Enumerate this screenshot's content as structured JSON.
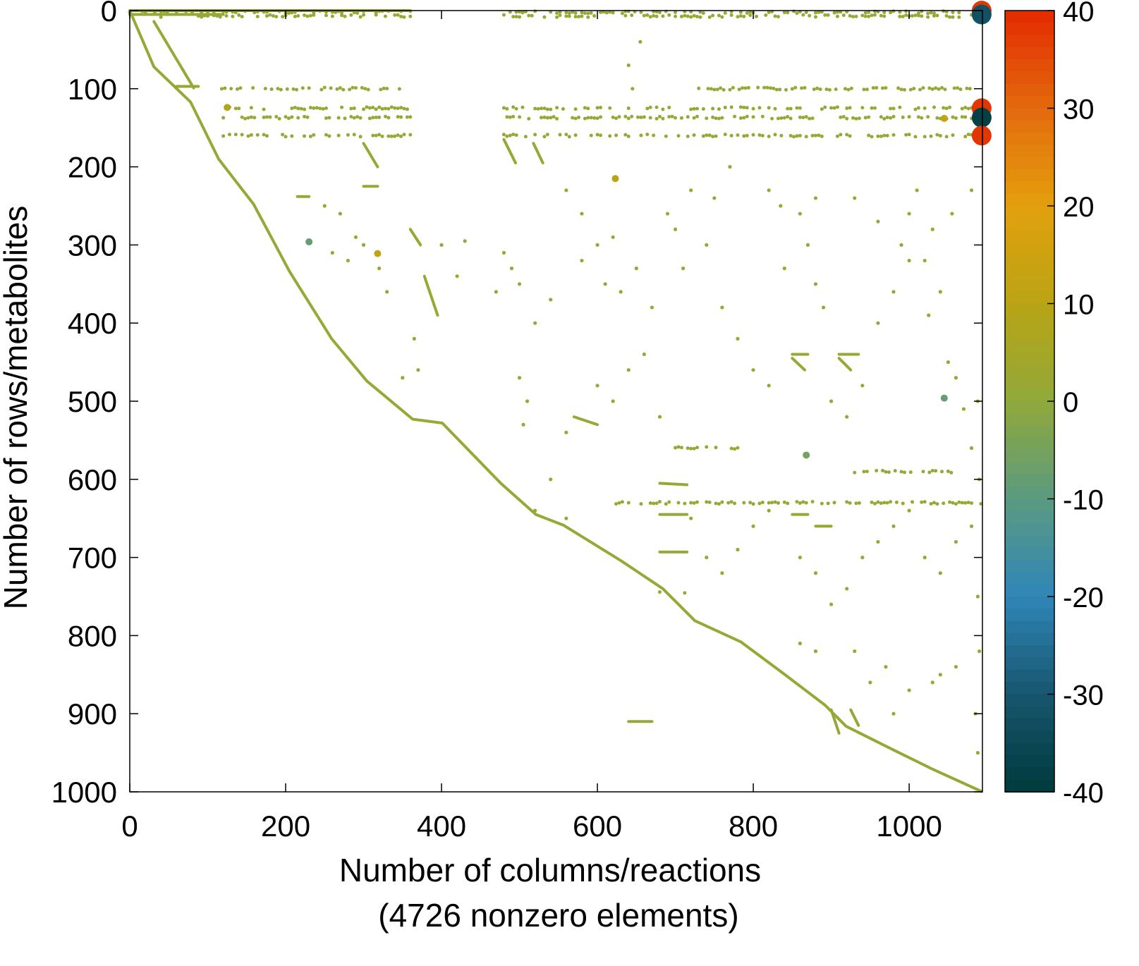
{
  "chart_data": {
    "type": "scatter",
    "subtype": "sparsity-pattern",
    "xlabel": "Number of columns/reactions",
    "xlabel_note": "(4726 nonzero elements)",
    "ylabel": "Number of rows/metabolites",
    "xlim": [
      0,
      1094
    ],
    "ylim": [
      1000,
      0
    ],
    "y_reversed": true,
    "grid": false,
    "xticks": [
      "0",
      "200",
      "400",
      "600",
      "800",
      "1000"
    ],
    "yticks": [
      "0",
      "100",
      "200",
      "300",
      "400",
      "500",
      "600",
      "700",
      "800",
      "900",
      "1000"
    ],
    "colorbar": {
      "range": [
        -40,
        40
      ],
      "ticks": [
        "40",
        "30",
        "20",
        "10",
        "0",
        "-10",
        "-20",
        "-30",
        "-40"
      ],
      "colors": [
        "#003a3c",
        "#17566e",
        "#2f86b8",
        "#5b9a80",
        "#90a93a",
        "#b9a416",
        "#e3a00c",
        "#e36a0e",
        "#e32a00"
      ]
    },
    "default_value": 1,
    "diagonal": [
      [
        0,
        0
      ],
      [
        31,
        72
      ],
      [
        78,
        117
      ],
      [
        114,
        190
      ],
      [
        159,
        248
      ],
      [
        205,
        334
      ],
      [
        259,
        420
      ],
      [
        304,
        474
      ],
      [
        363,
        523
      ],
      [
        401,
        528
      ],
      [
        476,
        605
      ],
      [
        521,
        645
      ],
      [
        557,
        659
      ],
      [
        630,
        704
      ],
      [
        684,
        740
      ],
      [
        725,
        781
      ],
      [
        784,
        808
      ],
      [
        838,
        848
      ],
      [
        892,
        889
      ],
      [
        919,
        916
      ],
      [
        973,
        943
      ],
      [
        1028,
        970
      ],
      [
        1094,
        1000
      ]
    ],
    "segments": [
      [
        [
          31,
          14
        ],
        [
          82,
          99
        ]
      ],
      [
        [
          0,
          0
        ],
        [
          360,
          0
        ]
      ],
      [
        [
          0,
          5
        ],
        [
          120,
          5
        ]
      ],
      [
        [
          60,
          97
        ],
        [
          88,
          97
        ]
      ],
      [
        [
          300,
          170
        ],
        [
          318,
          200
        ]
      ],
      [
        [
          360,
          280
        ],
        [
          373,
          300
        ]
      ],
      [
        [
          378,
          340
        ],
        [
          395,
          390
        ]
      ],
      [
        [
          480,
          165
        ],
        [
          495,
          195
        ]
      ],
      [
        [
          518,
          170
        ],
        [
          530,
          195
        ]
      ],
      [
        [
          570,
          520
        ],
        [
          600,
          530
        ]
      ],
      [
        [
          680,
          605
        ],
        [
          715,
          607
        ]
      ],
      [
        [
          680,
          645
        ],
        [
          715,
          645
        ]
      ],
      [
        [
          680,
          693
        ],
        [
          715,
          693
        ]
      ],
      [
        [
          850,
          440
        ],
        [
          870,
          440
        ]
      ],
      [
        [
          850,
          445
        ],
        [
          866,
          460
        ]
      ],
      [
        [
          910,
          440
        ],
        [
          935,
          440
        ]
      ],
      [
        [
          910,
          445
        ],
        [
          925,
          460
        ]
      ],
      [
        [
          900,
          895
        ],
        [
          910,
          925
        ]
      ],
      [
        [
          925,
          895
        ],
        [
          935,
          915
        ]
      ],
      [
        [
          300,
          225
        ],
        [
          318,
          225
        ]
      ],
      [
        [
          215,
          238
        ],
        [
          230,
          238
        ]
      ],
      [
        [
          850,
          645
        ],
        [
          870,
          645
        ]
      ],
      [
        [
          880,
          660
        ],
        [
          900,
          660
        ]
      ],
      [
        [
          640,
          910
        ],
        [
          670,
          910
        ]
      ]
    ],
    "bands": [
      {
        "row": 2,
        "from": 0,
        "to": 360
      },
      {
        "row": 2,
        "from": 480,
        "to": 1094
      },
      {
        "row": 7,
        "from": 40,
        "to": 360
      },
      {
        "row": 7,
        "from": 480,
        "to": 1094
      },
      {
        "row": 100,
        "from": 110,
        "to": 350
      },
      {
        "row": 100,
        "from": 730,
        "to": 1080
      },
      {
        "row": 125,
        "from": 120,
        "to": 360
      },
      {
        "row": 125,
        "from": 480,
        "to": 1094
      },
      {
        "row": 137,
        "from": 120,
        "to": 360
      },
      {
        "row": 137,
        "from": 480,
        "to": 1094
      },
      {
        "row": 160,
        "from": 120,
        "to": 360
      },
      {
        "row": 160,
        "from": 480,
        "to": 1094
      },
      {
        "row": 630,
        "from": 620,
        "to": 1094
      },
      {
        "row": 560,
        "from": 700,
        "to": 780
      },
      {
        "row": 590,
        "from": 930,
        "to": 1060
      },
      {
        "row": 745,
        "from": 680,
        "to": 720
      }
    ],
    "points": [
      [
        1093,
        0,
        38
      ],
      [
        1093,
        5,
        -32
      ],
      [
        1093,
        125,
        38
      ],
      [
        1093,
        137,
        -38
      ],
      [
        1093,
        160,
        38
      ],
      [
        230,
        296,
        -8
      ],
      [
        318,
        311,
        12
      ],
      [
        623,
        215,
        10
      ],
      [
        1045,
        496,
        -8
      ],
      [
        1045,
        138,
        12
      ],
      [
        868,
        569,
        -5
      ],
      [
        125,
        124,
        8
      ],
      [
        655,
        40,
        1
      ],
      [
        640,
        70,
        1
      ],
      [
        645,
        100,
        1
      ],
      [
        250,
        250,
        1
      ],
      [
        270,
        260,
        1
      ],
      [
        290,
        290,
        1
      ],
      [
        320,
        330,
        1
      ],
      [
        330,
        360,
        1
      ],
      [
        260,
        310,
        1
      ],
      [
        280,
        320,
        1
      ],
      [
        300,
        300,
        1
      ],
      [
        350,
        470,
        1
      ],
      [
        365,
        420,
        1
      ],
      [
        370,
        460,
        1
      ],
      [
        430,
        295,
        1
      ],
      [
        420,
        340,
        1
      ],
      [
        400,
        300,
        1
      ],
      [
        500,
        470,
        1
      ],
      [
        510,
        500,
        1
      ],
      [
        505,
        530,
        1
      ],
      [
        520,
        640,
        1
      ],
      [
        540,
        600,
        1
      ],
      [
        560,
        650,
        1
      ],
      [
        560,
        230,
        1
      ],
      [
        580,
        260,
        1
      ],
      [
        600,
        300,
        1
      ],
      [
        610,
        350,
        1
      ],
      [
        620,
        290,
        1
      ],
      [
        650,
        330,
        1
      ],
      [
        670,
        380,
        1
      ],
      [
        700,
        280,
        1
      ],
      [
        720,
        230,
        1
      ],
      [
        740,
        300,
        1
      ],
      [
        760,
        380,
        1
      ],
      [
        780,
        420,
        1
      ],
      [
        800,
        460,
        1
      ],
      [
        820,
        480,
        1
      ],
      [
        840,
        330,
        1
      ],
      [
        860,
        260,
        1
      ],
      [
        870,
        300,
        1
      ],
      [
        880,
        350,
        1
      ],
      [
        890,
        380,
        1
      ],
      [
        900,
        500,
        1
      ],
      [
        920,
        520,
        1
      ],
      [
        940,
        480,
        1
      ],
      [
        960,
        400,
        1
      ],
      [
        980,
        360,
        1
      ],
      [
        990,
        300,
        1
      ],
      [
        1000,
        260,
        1
      ],
      [
        1010,
        230,
        1
      ],
      [
        1020,
        320,
        1
      ],
      [
        1030,
        280,
        1
      ],
      [
        1040,
        360,
        1
      ],
      [
        1050,
        450,
        1
      ],
      [
        1060,
        470,
        1
      ],
      [
        1070,
        510,
        1
      ],
      [
        1080,
        560,
        1
      ],
      [
        1090,
        600,
        1
      ],
      [
        560,
        540,
        1
      ],
      [
        600,
        480,
        1
      ],
      [
        620,
        500,
        1
      ],
      [
        640,
        460,
        1
      ],
      [
        660,
        440,
        1
      ],
      [
        680,
        520,
        1
      ],
      [
        720,
        650,
        1
      ],
      [
        740,
        700,
        1
      ],
      [
        760,
        720,
        1
      ],
      [
        780,
        690,
        1
      ],
      [
        800,
        660,
        1
      ],
      [
        820,
        640,
        1
      ],
      [
        860,
        700,
        1
      ],
      [
        880,
        720,
        1
      ],
      [
        900,
        760,
        1
      ],
      [
        920,
        740,
        1
      ],
      [
        940,
        700,
        1
      ],
      [
        960,
        680,
        1
      ],
      [
        980,
        660,
        1
      ],
      [
        1000,
        640,
        1
      ],
      [
        1020,
        700,
        1
      ],
      [
        1040,
        720,
        1
      ],
      [
        1060,
        680,
        1
      ],
      [
        1080,
        660,
        1
      ],
      [
        860,
        810,
        1
      ],
      [
        880,
        820,
        1
      ],
      [
        930,
        820,
        1
      ],
      [
        950,
        860,
        1
      ],
      [
        970,
        840,
        1
      ],
      [
        1000,
        870,
        1
      ],
      [
        1040,
        850,
        1
      ],
      [
        1060,
        840,
        1
      ],
      [
        1085,
        900,
        1
      ],
      [
        1090,
        820,
        1
      ],
      [
        1030,
        860,
        1
      ],
      [
        980,
        900,
        1
      ],
      [
        470,
        360,
        1
      ],
      [
        480,
        310,
        1
      ],
      [
        490,
        330,
        1
      ],
      [
        500,
        350,
        1
      ],
      [
        520,
        400,
        1
      ],
      [
        540,
        370,
        1
      ],
      [
        580,
        320,
        1
      ],
      [
        630,
        360,
        1
      ],
      [
        690,
        260,
        1
      ],
      [
        710,
        330,
        1
      ],
      [
        750,
        240,
        1
      ],
      [
        770,
        200,
        1
      ],
      [
        820,
        230,
        1
      ],
      [
        835,
        250,
        1
      ],
      [
        880,
        240,
        1
      ],
      [
        930,
        240,
        1
      ],
      [
        960,
        270,
        1
      ],
      [
        1000,
        320,
        1
      ],
      [
        1025,
        390,
        1
      ],
      [
        1055,
        260,
        1
      ],
      [
        1080,
        230,
        1
      ],
      [
        1088,
        500,
        1
      ],
      [
        1088,
        750,
        1
      ],
      [
        1088,
        950,
        1
      ]
    ]
  }
}
